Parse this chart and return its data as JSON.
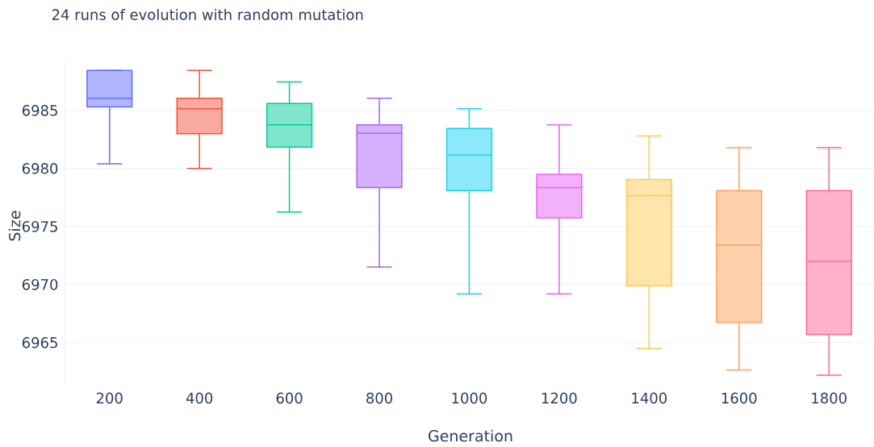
{
  "chart_data": {
    "type": "box",
    "title": "24 runs of evolution with random mutation",
    "xlabel": "Generation",
    "ylabel": "Size",
    "categories": [
      "200",
      "400",
      "600",
      "800",
      "1000",
      "1200",
      "1400",
      "1600",
      "1800"
    ],
    "boxes": [
      {
        "low": 6980.4,
        "q1": 6985.3,
        "median": 6986.05,
        "q3": 6988.45,
        "high": 6988.45
      },
      {
        "low": 6980.0,
        "q1": 6983.0,
        "median": 6985.15,
        "q3": 6986.05,
        "high": 6988.45
      },
      {
        "low": 6976.25,
        "q1": 6981.85,
        "median": 6983.75,
        "q3": 6985.6,
        "high": 6987.45
      },
      {
        "low": 6971.5,
        "q1": 6978.35,
        "median": 6983.05,
        "q3": 6983.75,
        "high": 6986.05
      },
      {
        "low": 6969.2,
        "q1": 6978.1,
        "median": 6981.15,
        "q3": 6983.45,
        "high": 6985.15
      },
      {
        "low": 6969.2,
        "q1": 6975.75,
        "median": 6978.35,
        "q3": 6979.5,
        "high": 6983.75
      },
      {
        "low": 6964.5,
        "q1": 6969.9,
        "median": 6977.65,
        "q3": 6979.05,
        "high": 6982.8
      },
      {
        "low": 6962.65,
        "q1": 6966.75,
        "median": 6973.4,
        "q3": 6978.1,
        "high": 6981.8
      },
      {
        "low": 6962.2,
        "q1": 6965.7,
        "median": 6972.0,
        "q3": 6978.1,
        "high": 6981.8
      }
    ],
    "colors": [
      "#636efa",
      "#ef553b",
      "#00cc96",
      "#ab63fa",
      "#19d3f3",
      "#e763fa",
      "#fecb52",
      "#ffa15a",
      "#ff6692"
    ],
    "ylim": [
      6961.5,
      6989.3
    ],
    "yticks": [
      6965,
      6970,
      6975,
      6980,
      6985
    ],
    "grid": "y"
  }
}
